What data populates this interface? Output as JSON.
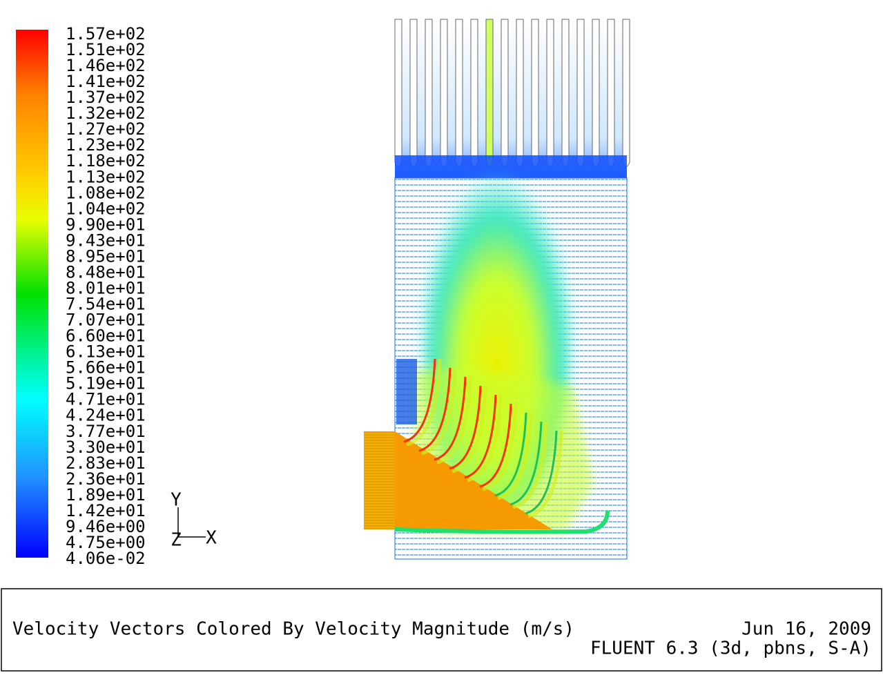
{
  "colorbar": {
    "labels": [
      "1.57e+02",
      "1.51e+02",
      "1.46e+02",
      "1.41e+02",
      "1.37e+02",
      "1.32e+02",
      "1.27e+02",
      "1.23e+02",
      "1.18e+02",
      "1.13e+02",
      "1.08e+02",
      "1.04e+02",
      "9.90e+01",
      "9.43e+01",
      "8.95e+01",
      "8.48e+01",
      "8.01e+01",
      "7.54e+01",
      "7.07e+01",
      "6.60e+01",
      "6.13e+01",
      "5.66e+01",
      "5.19e+01",
      "4.71e+01",
      "4.24e+01",
      "3.77e+01",
      "3.30e+01",
      "2.83e+01",
      "2.36e+01",
      "1.89e+01",
      "1.42e+01",
      "9.46e+00",
      "4.75e+00",
      "4.06e-02"
    ]
  },
  "axes_triad": {
    "y": "Y",
    "z": "Z",
    "x": "X"
  },
  "footer": {
    "title": "Velocity Vectors Colored By Velocity Magnitude (m/s)",
    "date": "Jun 16, 2009",
    "solver": "FLUENT 6.3 (3d, pbns, S-A)"
  }
}
